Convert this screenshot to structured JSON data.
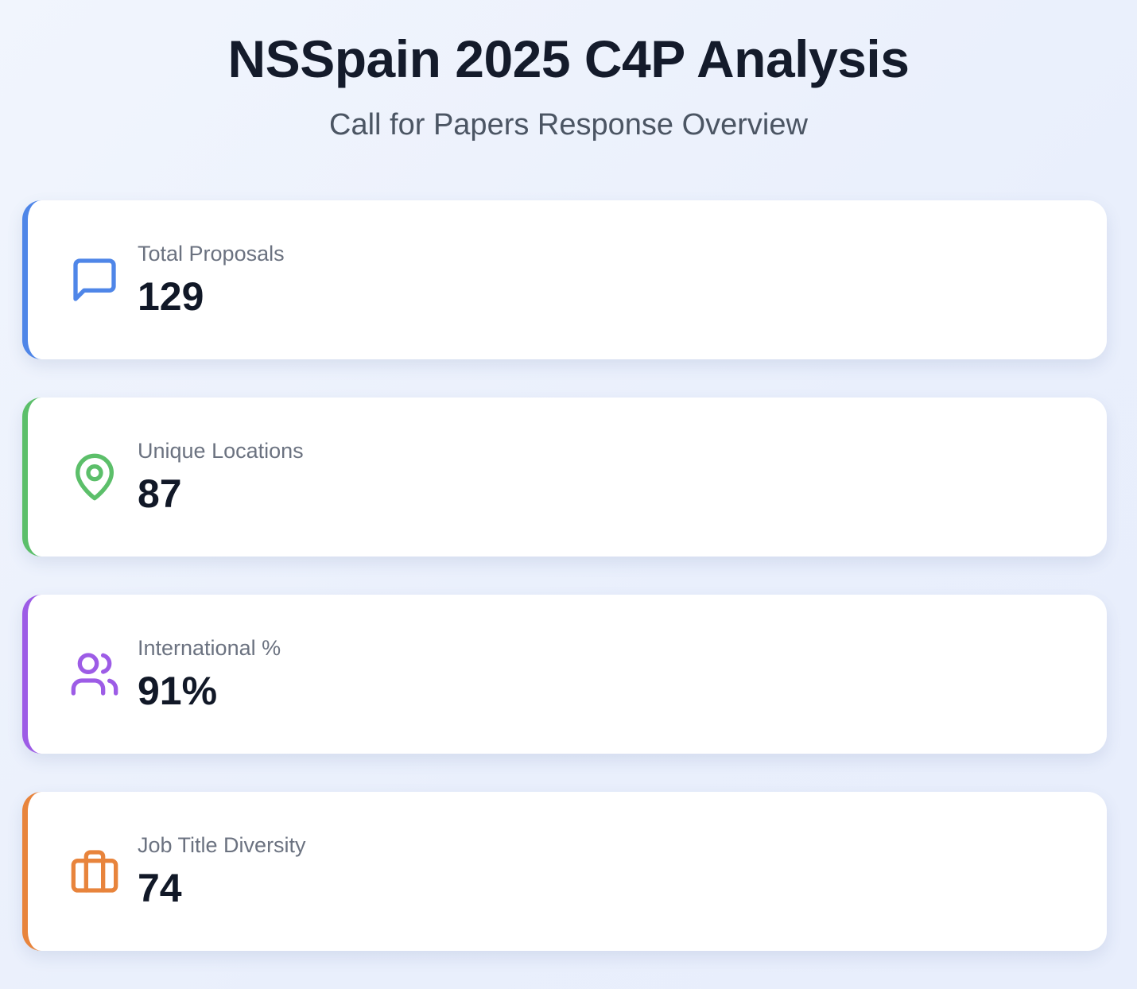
{
  "header": {
    "title": "NSSpain 2025 C4P Analysis",
    "subtitle": "Call for Papers Response Overview"
  },
  "cards": [
    {
      "label": "Total Proposals",
      "value": 129,
      "color": "#4f86e8"
    },
    {
      "label": "Unique Locations",
      "value": 87,
      "color": "#5cbf6a"
    },
    {
      "label": "International %",
      "value": "91%",
      "color": "#9d5ce6"
    },
    {
      "label": "Job Title Diversity",
      "value": 74,
      "color": "#e8843c"
    }
  ]
}
